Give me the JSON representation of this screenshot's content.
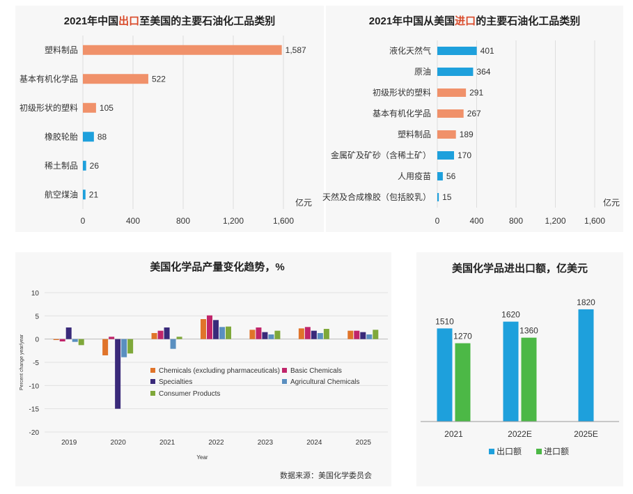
{
  "colors": {
    "orange": "#f0916a",
    "blue": "#1ea0dc",
    "green": "#4cb846",
    "red": "#c0256a",
    "purple": "#3a2a7a",
    "steel": "#5a8fc0",
    "lime": "#7fa83a",
    "orange2": "#e0742a",
    "title_highlight": "#d94a2a"
  },
  "chart_data": [
    {
      "id": "export",
      "type": "bar",
      "orientation": "horizontal",
      "title_prefix": "2021年中国",
      "title_highlight": "出口",
      "title_suffix": "至美国的主要石油化工品类别",
      "categories": [
        "塑料制品",
        "基本有机化学品",
        "初级形状的塑料",
        "橡胶轮胎",
        "稀土制品",
        "航空煤油"
      ],
      "values": [
        1587,
        522,
        105,
        88,
        26,
        21
      ],
      "value_labels": [
        "1,587",
        "522",
        "105",
        "88",
        "26",
        "21"
      ],
      "bar_colors": [
        "orange",
        "orange",
        "orange",
        "blue",
        "blue",
        "blue"
      ],
      "unit": "亿元",
      "xlim": [
        0,
        1600
      ],
      "xticks": [
        "0",
        "400",
        "800",
        "1,200",
        "1,600"
      ],
      "grid": true
    },
    {
      "id": "import",
      "type": "bar",
      "orientation": "horizontal",
      "title_prefix": "2021年中国从美国",
      "title_highlight": "进口",
      "title_suffix": "的主要石油化工品类别",
      "categories": [
        "液化天然气",
        "原油",
        "初级形状的塑料",
        "基本有机化学品",
        "塑料制品",
        "金属矿及矿砂（含稀土矿）",
        "人用疫苗",
        "天然及合成橡胶（包括胶乳）"
      ],
      "values": [
        401,
        364,
        291,
        267,
        189,
        170,
        56,
        15
      ],
      "value_labels": [
        "401",
        "364",
        "291",
        "267",
        "189",
        "170",
        "56",
        "15"
      ],
      "bar_colors": [
        "blue",
        "blue",
        "orange",
        "orange",
        "orange",
        "blue",
        "blue",
        "blue"
      ],
      "unit": "亿元",
      "xlim": [
        0,
        1600
      ],
      "xticks": [
        "0",
        "400",
        "800",
        "1,200",
        "1,600"
      ],
      "grid": true
    },
    {
      "id": "production",
      "type": "bar",
      "title": "美国化学品产量变化趋势，%",
      "categories": [
        "2019",
        "2020",
        "2021",
        "2022",
        "2023",
        "2024",
        "2025"
      ],
      "xlabel": "Year",
      "ylabel": "Percent change year/year",
      "ylim": [
        -20,
        10
      ],
      "yticks": [
        "10",
        "5",
        "0",
        "-5",
        "-10",
        "-15",
        "-20"
      ],
      "grid": true,
      "legend_position": "bottom-center",
      "series": [
        {
          "name": "Chemicals (excluding pharmaceuticals)",
          "color": "orange2",
          "values": [
            -0.2,
            -3.5,
            1.3,
            4.3,
            2.0,
            2.3,
            1.8
          ]
        },
        {
          "name": "Basic Chemicals",
          "color": "red",
          "values": [
            -0.5,
            0.5,
            1.8,
            5.1,
            2.5,
            2.6,
            1.8
          ]
        },
        {
          "name": "Specialties",
          "color": "purple",
          "values": [
            2.5,
            -15.0,
            2.5,
            4.1,
            1.5,
            1.8,
            1.5
          ]
        },
        {
          "name": "Agricultural Chemicals",
          "color": "steel",
          "values": [
            -0.6,
            -3.9,
            -2.1,
            2.6,
            1.0,
            1.3,
            1.0
          ]
        },
        {
          "name": "Consumer Products",
          "color": "lime",
          "values": [
            -1.3,
            -3.1,
            0.5,
            2.7,
            1.8,
            2.2,
            2.0
          ]
        }
      ]
    },
    {
      "id": "trade",
      "type": "bar",
      "title": "美国化学品进出口额，亿美元",
      "categories": [
        "2021",
        "2022E",
        "2025E"
      ],
      "ylim": [
        0,
        2000
      ],
      "legend_position": "bottom",
      "series": [
        {
          "name": "出口额",
          "color": "blue",
          "values": [
            1510,
            1620,
            1820
          ]
        },
        {
          "name": "进口额",
          "color": "green",
          "values": [
            1270,
            1360,
            null
          ]
        }
      ]
    }
  ],
  "source_note": "数据来源：美国化学委员会"
}
